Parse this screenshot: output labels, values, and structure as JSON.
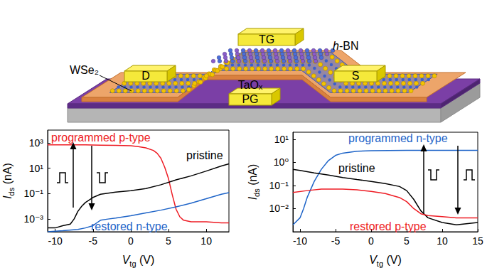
{
  "diagram": {
    "top_gate": "TG",
    "top_dielectric": "h-BN",
    "drain": "D",
    "source": "S",
    "channel": "WSe₂",
    "gate_oxide": "TaOₓ",
    "programming_gate": "PG"
  },
  "chart_data": [
    {
      "type": "line",
      "x_label": {
        "symbol": "V",
        "subscript": "tg",
        "unit": "(V)"
      },
      "y_label": {
        "symbol": "I",
        "subscript": "ds",
        "unit": "(nA)"
      },
      "xlim": [
        -11,
        13
      ],
      "xticks": [
        -10,
        -5,
        0,
        5,
        10
      ],
      "ylim": [
        0.0001,
        10000
      ],
      "yticks": [
        {
          "value": 0.001,
          "label": "10⁻³"
        },
        {
          "value": 0.1,
          "label": "10⁻¹"
        },
        {
          "value": 10,
          "label": "10¹"
        },
        {
          "value": 1000,
          "label": "10³"
        }
      ],
      "log": "y",
      "grid": false,
      "series": [
        {
          "name": "programmed p-type",
          "color": "#ee1c24",
          "x": [
            -11,
            -8,
            -6,
            -4,
            -2,
            0,
            1,
            2,
            3,
            3.5,
            4,
            4.5,
            5,
            5.5,
            6,
            6.5,
            7,
            8,
            10,
            12,
            13
          ],
          "values": [
            700,
            700,
            680,
            650,
            620,
            580,
            500,
            400,
            250,
            150,
            60,
            12,
            1.5,
            0.08,
            0.006,
            0.0015,
            0.0008,
            0.0006,
            0.0006,
            0.0005,
            0.0005
          ]
        },
        {
          "name": "pristine",
          "color": "#000000",
          "x": [
            -11,
            -10,
            -9,
            -8,
            -7.5,
            -7,
            -6.5,
            -6,
            -5,
            -4,
            -3,
            -2,
            0,
            2,
            4,
            6,
            8,
            10,
            12,
            13
          ],
          "values": [
            0.0002,
            0.0002,
            0.0003,
            0.0004,
            0.001,
            0.004,
            0.01,
            0.02,
            0.05,
            0.09,
            0.11,
            0.13,
            0.17,
            0.25,
            0.5,
            1.2,
            2.5,
            6,
            15,
            22
          ]
        },
        {
          "name": "restored n-type",
          "color": "#1e64c8",
          "x": [
            -11,
            -9,
            -7,
            -6,
            -5,
            -4.5,
            -4,
            -3,
            -2,
            0,
            2,
            4,
            6,
            8,
            10,
            12,
            13
          ],
          "values": [
            0.0001,
            0.00012,
            0.00015,
            0.0002,
            0.0003,
            0.0005,
            0.0008,
            0.001,
            0.0012,
            0.0018,
            0.003,
            0.005,
            0.009,
            0.018,
            0.04,
            0.09,
            0.12
          ]
        }
      ]
    },
    {
      "type": "line",
      "x_label": {
        "symbol": "V",
        "subscript": "tg",
        "unit": "(V)"
      },
      "y_label": {
        "symbol": "I",
        "subscript": "ds",
        "unit": "(nA)"
      },
      "xlim": [
        -11,
        15
      ],
      "xticks": [
        -10,
        -5,
        0,
        5,
        10,
        15
      ],
      "ylim": [
        0.001,
        20
      ],
      "yticks": [
        {
          "value": 0.01,
          "label": "10⁻²"
        },
        {
          "value": 0.1,
          "label": "10⁻¹"
        },
        {
          "value": 1,
          "label": "10⁰"
        },
        {
          "value": 10,
          "label": "10¹"
        }
      ],
      "log": "y",
      "grid": false,
      "series": [
        {
          "name": "programmed n-type",
          "color": "#1e64c8",
          "x": [
            -11,
            -10,
            -9.5,
            -9,
            -8,
            -7,
            -6,
            -5,
            -4,
            -2,
            0,
            5,
            10,
            15
          ],
          "values": [
            0.002,
            0.004,
            0.01,
            0.03,
            0.15,
            0.5,
            1.2,
            2,
            2.5,
            3,
            3.2,
            3.3,
            3.3,
            3.3
          ]
        },
        {
          "name": "pristine",
          "color": "#000000",
          "x": [
            -11,
            -10,
            -8,
            -6,
            -4,
            -2,
            0,
            2,
            4,
            5,
            6,
            7,
            8,
            10,
            12,
            15
          ],
          "values": [
            0.5,
            0.45,
            0.35,
            0.28,
            0.22,
            0.18,
            0.15,
            0.12,
            0.09,
            0.06,
            0.025,
            0.008,
            0.004,
            0.0025,
            0.002,
            0.0025
          ]
        },
        {
          "name": "restored p-type",
          "color": "#ee1c24",
          "x": [
            -11,
            -9,
            -7,
            -4,
            -2,
            0,
            2,
            4,
            5,
            6,
            7,
            8,
            10,
            12,
            15
          ],
          "values": [
            0.05,
            0.06,
            0.07,
            0.07,
            0.065,
            0.055,
            0.045,
            0.03,
            0.02,
            0.01,
            0.006,
            0.005,
            0.0045,
            0.004,
            0.004
          ]
        }
      ]
    }
  ]
}
